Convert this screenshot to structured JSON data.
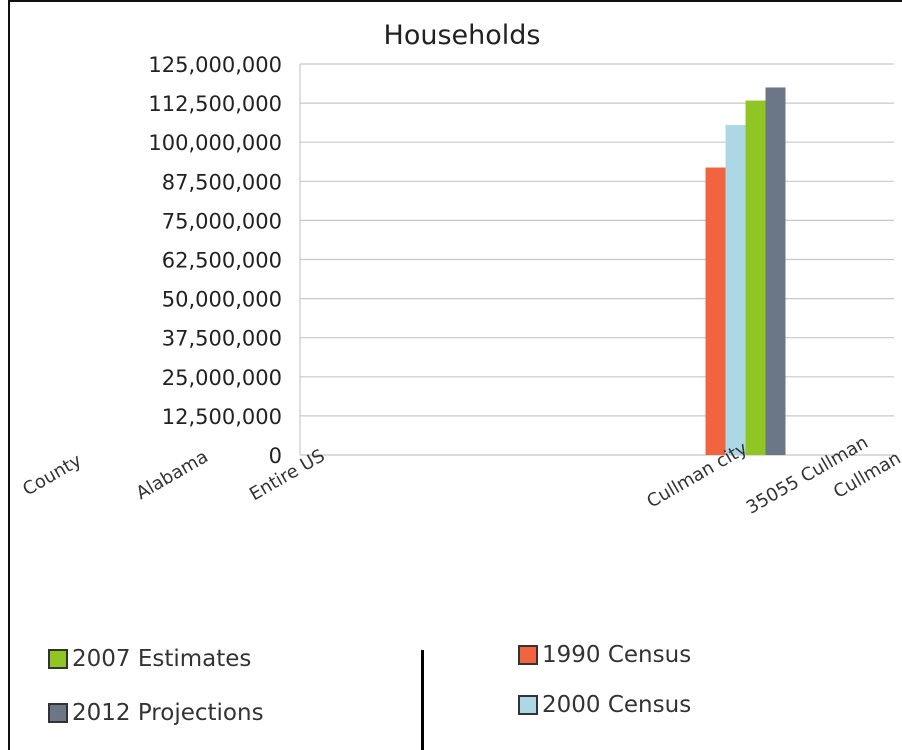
{
  "chart_data": {
    "type": "bar",
    "title": "Households",
    "xlabel": "",
    "ylabel": "",
    "ylim": [
      0,
      125000000
    ],
    "yticks": [
      0,
      12500000,
      25000000,
      37500000,
      50000000,
      62500000,
      75000000,
      87500000,
      100000000,
      112500000,
      125000000
    ],
    "ytick_labels": [
      "0",
      "12,500,000",
      "25,000,000",
      "37,500,000",
      "50,000,000",
      "62,500,000",
      "75,000,000",
      "87,500,000",
      "100,000,000",
      "112,500,000",
      "125,000,000"
    ],
    "categories": [
      "County",
      "Alabama",
      "Entire US",
      "Cullman city",
      "35055 Cullman",
      "Cullman"
    ],
    "series": [
      {
        "name": "1990 Census",
        "color": "#f2633f",
        "values": [
          0,
          0,
          0,
          0,
          91900000,
          0
        ]
      },
      {
        "name": "2000 Census",
        "color": "#acd8e6",
        "values": [
          0,
          0,
          0,
          0,
          105500000,
          0
        ]
      },
      {
        "name": "2007 Estimates",
        "color": "#90c623",
        "values": [
          0,
          0,
          0,
          0,
          113300000,
          0
        ]
      },
      {
        "name": "2012 Projections",
        "color": "#6b7786",
        "values": [
          0,
          0,
          0,
          0,
          117500000,
          0
        ]
      }
    ],
    "grid": true,
    "legend_position": "bottom"
  },
  "legend": {
    "item_1": "2007 Estimates",
    "item_2": "2012 Projections",
    "item_3": "1990 Census",
    "item_4": "2000 Census"
  }
}
